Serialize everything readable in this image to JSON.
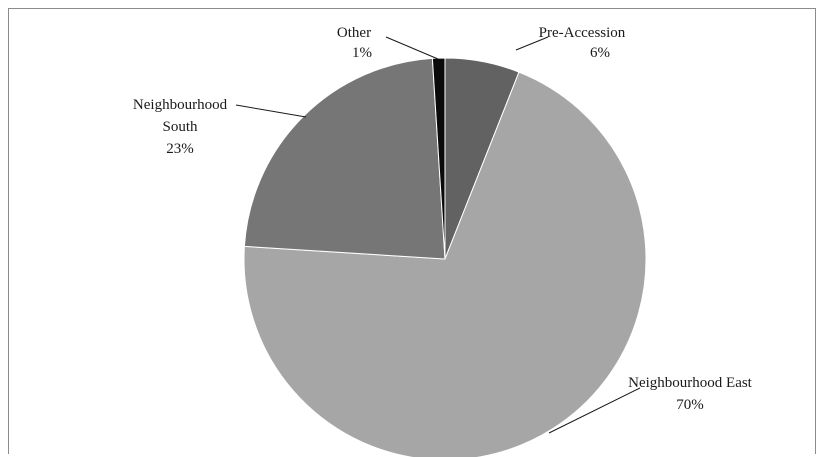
{
  "chart_data": {
    "type": "pie",
    "title": "",
    "start_angle_deg": 0,
    "direction": "clockwise",
    "slices": [
      {
        "name": "Pre-Accession",
        "value": 6,
        "label": "6%",
        "color": "#626262"
      },
      {
        "name": "Neighbourhood East",
        "value": 70,
        "label": "70%",
        "color": "#a6a6a6"
      },
      {
        "name": "Neighbourhood South",
        "value": 23,
        "label": "23%",
        "color": "#767676"
      },
      {
        "name": "Other",
        "value": 1,
        "label": "1%",
        "color": "#0a0a0a"
      }
    ],
    "legend": "none"
  }
}
